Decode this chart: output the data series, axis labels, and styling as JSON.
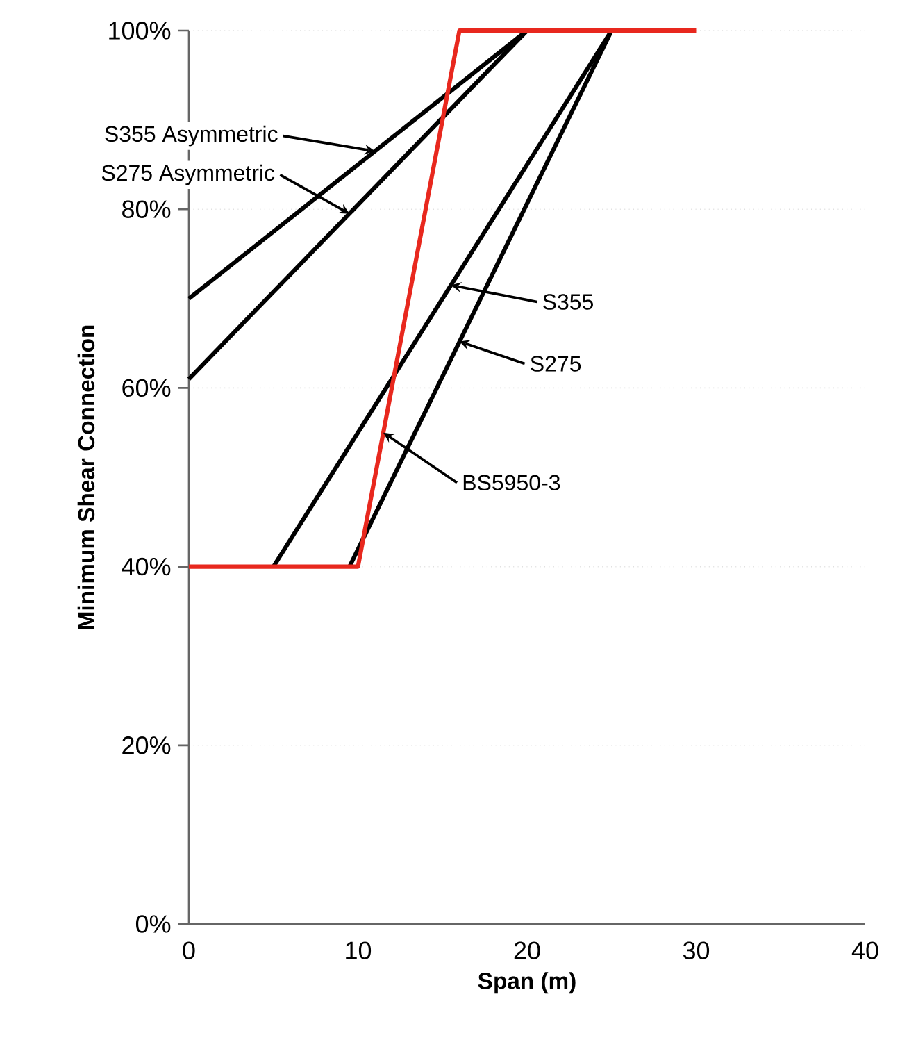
{
  "chart_data": {
    "type": "line",
    "xlabel": "Span (m)",
    "ylabel": "Minimum Shear Connection",
    "xlim": [
      0,
      40
    ],
    "xticks": [
      0,
      10,
      20,
      30,
      40
    ],
    "ylim": [
      0,
      100
    ],
    "yticks": [
      {
        "value": 0,
        "label": "0%"
      },
      {
        "value": 20,
        "label": "20%"
      },
      {
        "value": 40,
        "label": "40%"
      },
      {
        "value": 60,
        "label": "60%"
      },
      {
        "value": 80,
        "label": "80%"
      },
      {
        "value": 100,
        "label": "100%"
      }
    ],
    "grid": "y",
    "line_style": "solid",
    "series": [
      {
        "color": "#000000",
        "x": [
          0,
          20
        ],
        "values": [
          70,
          100
        ]
      },
      {
        "color": "#000000",
        "x": [
          0,
          20
        ],
        "values": [
          61,
          100
        ]
      },
      {
        "color": "#000000",
        "x": [
          5,
          25
        ],
        "values": [
          40,
          100
        ]
      },
      {
        "color": "#000000",
        "x": [
          9.5,
          25
        ],
        "values": [
          40,
          100
        ]
      },
      {
        "color": "#e8281e",
        "x": [
          0,
          10,
          16,
          30
        ],
        "values": [
          40,
          40,
          100,
          100
        ]
      }
    ],
    "annotations": [
      {
        "text": "S355 Asymmetric",
        "x": 11,
        "y": 86.5
      },
      {
        "text": "S275 Asymmetric",
        "x": 9.5,
        "y": 79.5
      },
      {
        "text": "S355",
        "x": 15.5,
        "y": 71.5
      },
      {
        "text": "S275",
        "x": 16,
        "y": 65.2
      },
      {
        "text": "BS5950-3",
        "x": 11.5,
        "y": 55
      }
    ]
  }
}
